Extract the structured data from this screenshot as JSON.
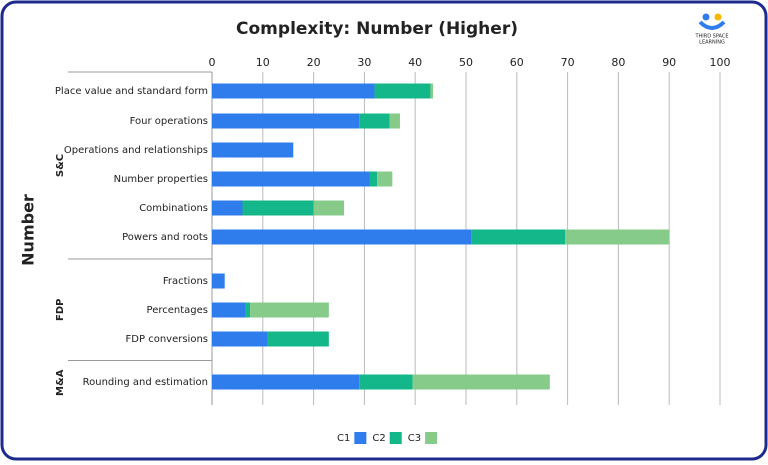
{
  "chart_data": {
    "type": "stacked-barh",
    "title": "Complexity: Number (Higher)",
    "y_label": "Number",
    "categories": [
      "Place value and standard form",
      "Four operations",
      "Operations and relationships",
      "Number properties",
      "Combinations",
      "Powers and roots",
      "Fractions",
      "Percentages",
      "FDP conversions",
      "Rounding and estimation"
    ],
    "category_groups": [
      "S&C",
      "S&C",
      "S&C",
      "S&C",
      "S&C",
      "S&C",
      "FDP",
      "FDP",
      "FDP",
      "M&A"
    ],
    "series": [
      {
        "name": "C1",
        "color": "#2f7ded",
        "values": [
          32,
          29,
          16,
          31,
          6,
          51,
          2.5,
          6.5,
          11,
          29
        ]
      },
      {
        "name": "C2",
        "color": "#14b789",
        "values": [
          11,
          6,
          0,
          1.5,
          14,
          18.5,
          0,
          1,
          12,
          10.5
        ]
      },
      {
        "name": "C3",
        "color": "#86cb89",
        "values": [
          0.5,
          2,
          0,
          3,
          6,
          20.5,
          0,
          15.5,
          0,
          27
        ]
      }
    ],
    "xlim": [
      0,
      100
    ],
    "xticks": [
      0,
      10,
      20,
      30,
      40,
      50,
      60,
      70,
      80,
      90,
      100
    ],
    "grid": true
  },
  "branding": {
    "logo_text": [
      "THIRD SPACE",
      "LEARNING"
    ]
  }
}
